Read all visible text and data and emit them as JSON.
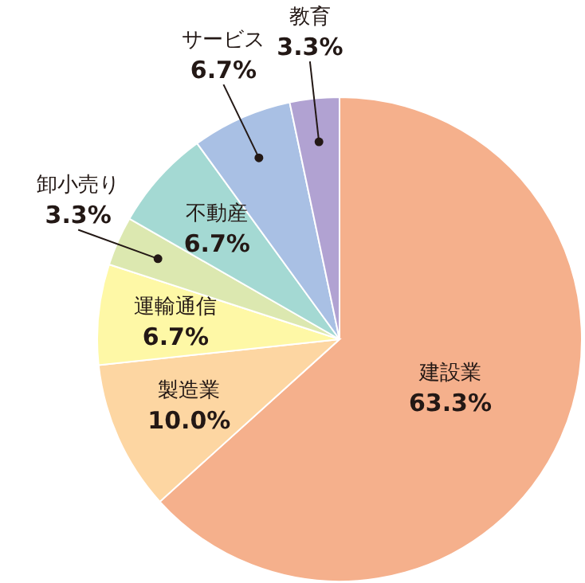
{
  "chart_data": {
    "type": "pie",
    "categories": [
      "建設業",
      "製造業",
      "運輸通信",
      "卸小売り",
      "不動産",
      "サービス",
      "教育"
    ],
    "values": [
      63.3,
      10.0,
      6.7,
      3.3,
      6.7,
      6.7,
      3.3
    ],
    "colors": [
      "#f5b08c",
      "#fdd6a2",
      "#fef8a6",
      "#dce8b0",
      "#a4d9d3",
      "#a9c0e4",
      "#b1a2d2"
    ],
    "value_labels": [
      "63.3%",
      "10.0%",
      "6.7%",
      "3.3%",
      "6.7%",
      "6.7%",
      "3.3%"
    ]
  }
}
